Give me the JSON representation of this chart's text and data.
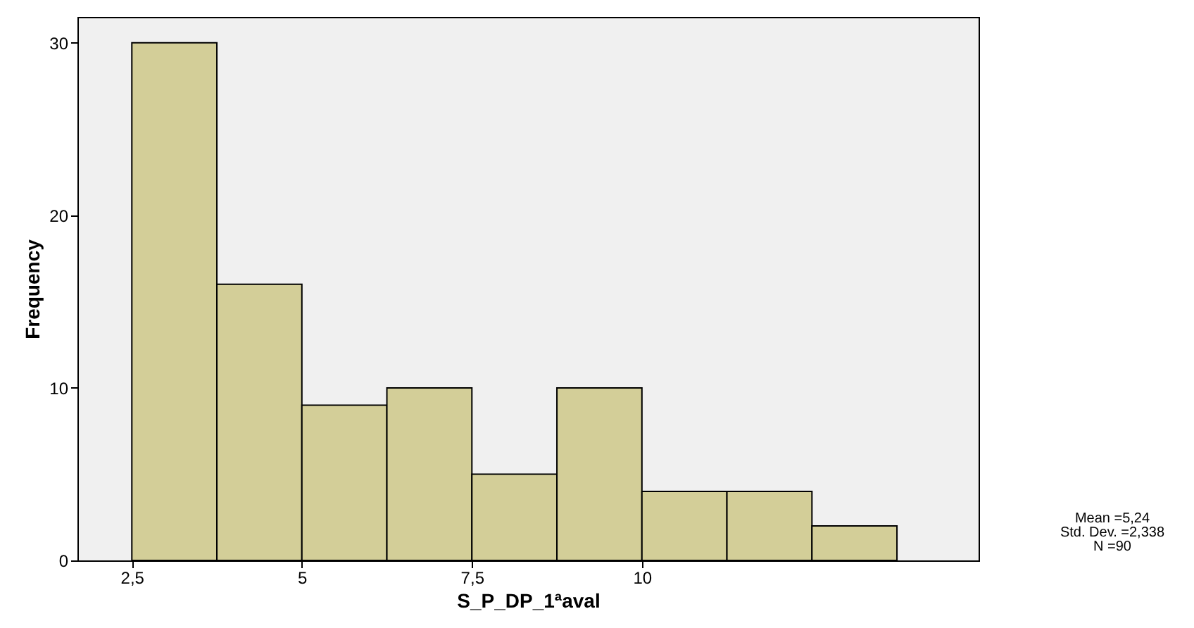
{
  "chart_data": {
    "type": "histogram",
    "xlabel": "S_P_DP_1ªaval",
    "ylabel": "Frequency",
    "bins": [
      2.5,
      3.75,
      5,
      6.25,
      7.5,
      8.75,
      10,
      11.25,
      12.5,
      13.75
    ],
    "values": [
      30,
      16,
      9,
      10,
      5,
      10,
      4,
      4,
      2
    ],
    "color": "#d3ce98",
    "xlim": [
      1.7,
      14.95
    ],
    "ylim": [
      0,
      31.5
    ],
    "xticks": [
      {
        "value": 2.5,
        "label": "2,5"
      },
      5,
      {
        "value": 7.5,
        "label": "7,5"
      },
      10
    ],
    "yticks": [
      0,
      10,
      20,
      30
    ],
    "grid": false,
    "annotations": [
      "Mean =5,24",
      "Std. Dev. =2,338",
      "N =90"
    ]
  }
}
